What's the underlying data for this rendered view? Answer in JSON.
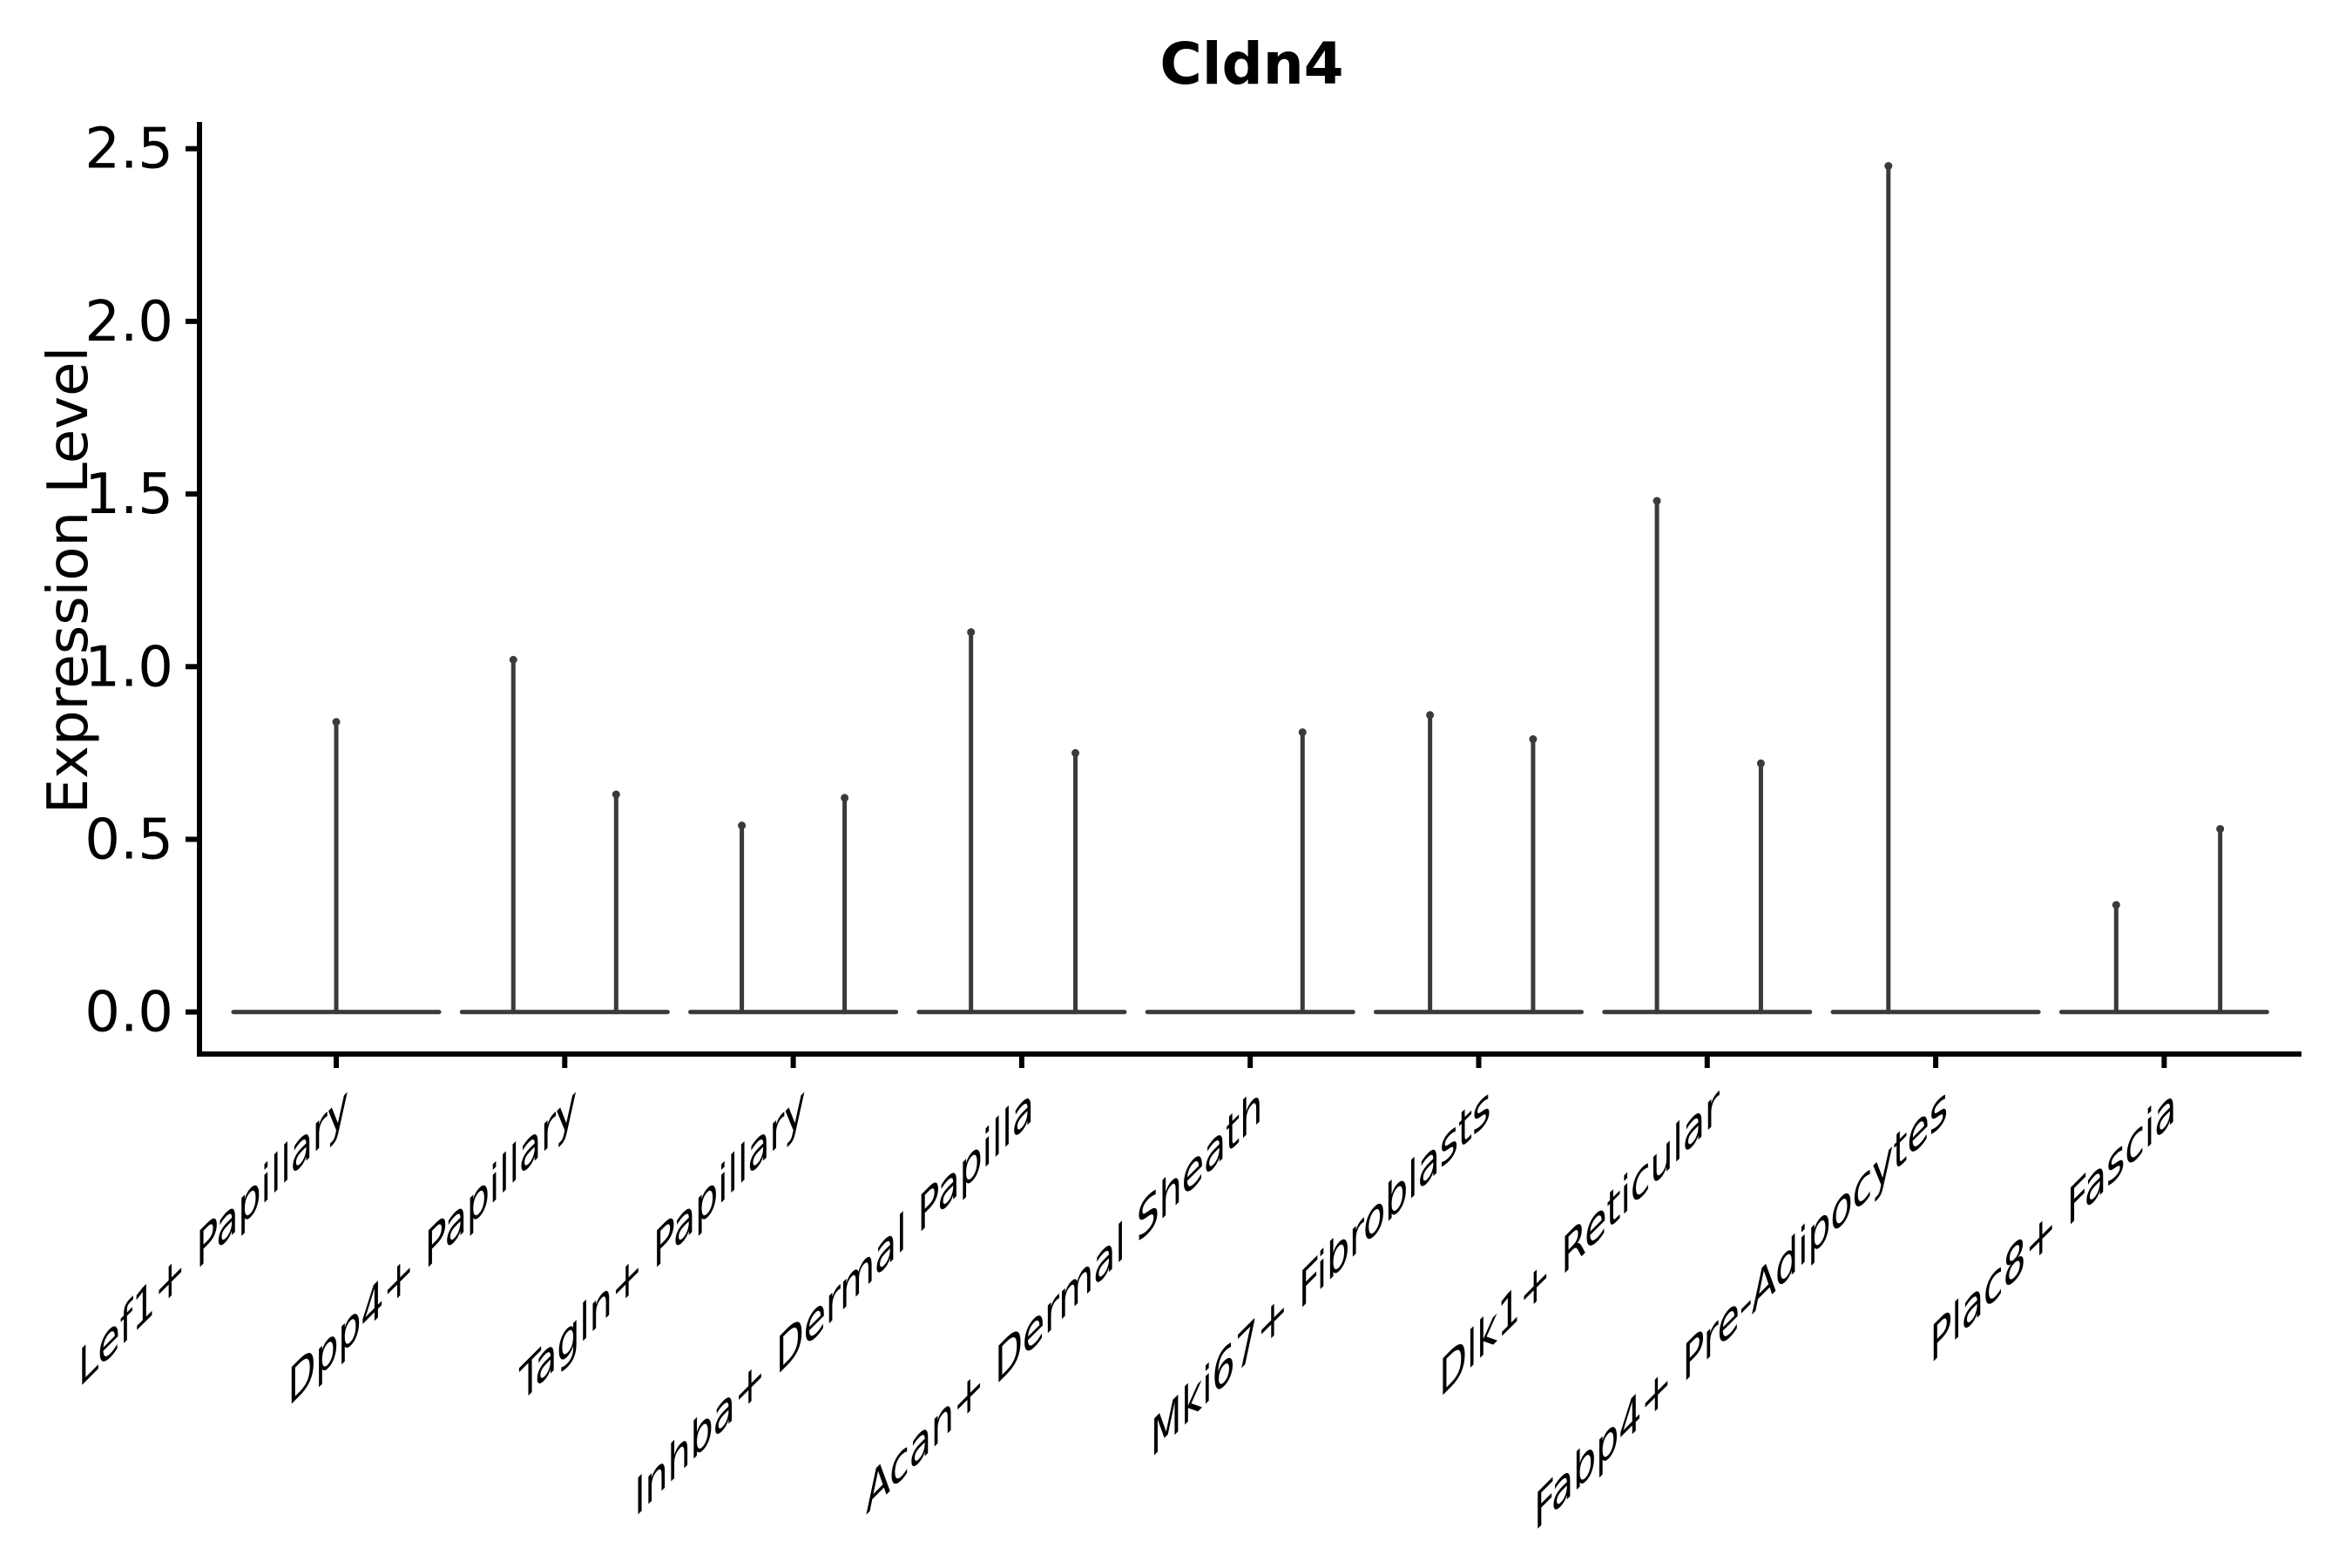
{
  "title": "Cldn4",
  "chart_data": {
    "type": "violin",
    "title": "Cldn4",
    "xlabel": "",
    "ylabel": "Expression Level",
    "ylim": [
      0,
      2.5
    ],
    "yticks": [
      "0.0",
      "0.5",
      "1.0",
      "1.5",
      "2.0",
      "2.5"
    ],
    "ytick_values": [
      0.0,
      0.5,
      1.0,
      1.5,
      2.0,
      2.5
    ],
    "grid": false,
    "legend": "none",
    "style_note": "single-cell expression violin plot; every violin is collapsed to a flat baseline at 0 with narrow vertical peaks reaching the maximum expression values; x tick labels rotated 45 degrees and sheared",
    "categories": [
      "Lef1+ Papillary",
      "Dpp4+ Papillary",
      "Tagln+ Papillary",
      "Inhba+ Dermal Papilla",
      "Acan+ Dermal Sheath",
      "Mki67+ Fibroblasts",
      "Dlk1+ Reticular",
      "Fabp4+ Pre-Adipocytes",
      "Plac8+ Fascia"
    ],
    "violins": [
      {
        "category": "Lef1+ Papillary",
        "peaks": [
          {
            "pos": 0.0,
            "max": 0.84
          }
        ]
      },
      {
        "category": "Dpp4+ Papillary",
        "peaks": [
          {
            "pos": -0.225,
            "max": 1.02
          },
          {
            "pos": 0.225,
            "max": 0.63
          }
        ]
      },
      {
        "category": "Tagln+ Papillary",
        "peaks": [
          {
            "pos": -0.225,
            "max": 0.54
          },
          {
            "pos": 0.225,
            "max": 0.62
          }
        ]
      },
      {
        "category": "Inhba+ Dermal Papilla",
        "peaks": [
          {
            "pos": -0.222,
            "max": 1.1
          },
          {
            "pos": 0.235,
            "max": 0.75
          }
        ]
      },
      {
        "category": "Acan+ Dermal Sheath",
        "peaks": [
          {
            "pos": 0.229,
            "max": 0.81
          }
        ]
      },
      {
        "category": "Mki67+ Fibroblasts",
        "peaks": [
          {
            "pos": -0.213,
            "max": 0.86
          },
          {
            "pos": 0.238,
            "max": 0.79
          }
        ]
      },
      {
        "category": "Dlk1+ Reticular",
        "peaks": [
          {
            "pos": -0.22,
            "max": 1.48
          },
          {
            "pos": 0.235,
            "max": 0.72
          }
        ]
      },
      {
        "category": "Fabp4+ Pre-Adipocytes",
        "peaks": [
          {
            "pos": -0.207,
            "max": 2.45
          }
        ]
      },
      {
        "category": "Plac8+ Fascia",
        "peaks": [
          {
            "pos": -0.21,
            "max": 0.31
          },
          {
            "pos": 0.245,
            "max": 0.53
          }
        ]
      }
    ],
    "colors": {
      "violin_line": "#3a3a3a",
      "axis": "#000000",
      "text": "#000000",
      "background": "#ffffff"
    }
  }
}
